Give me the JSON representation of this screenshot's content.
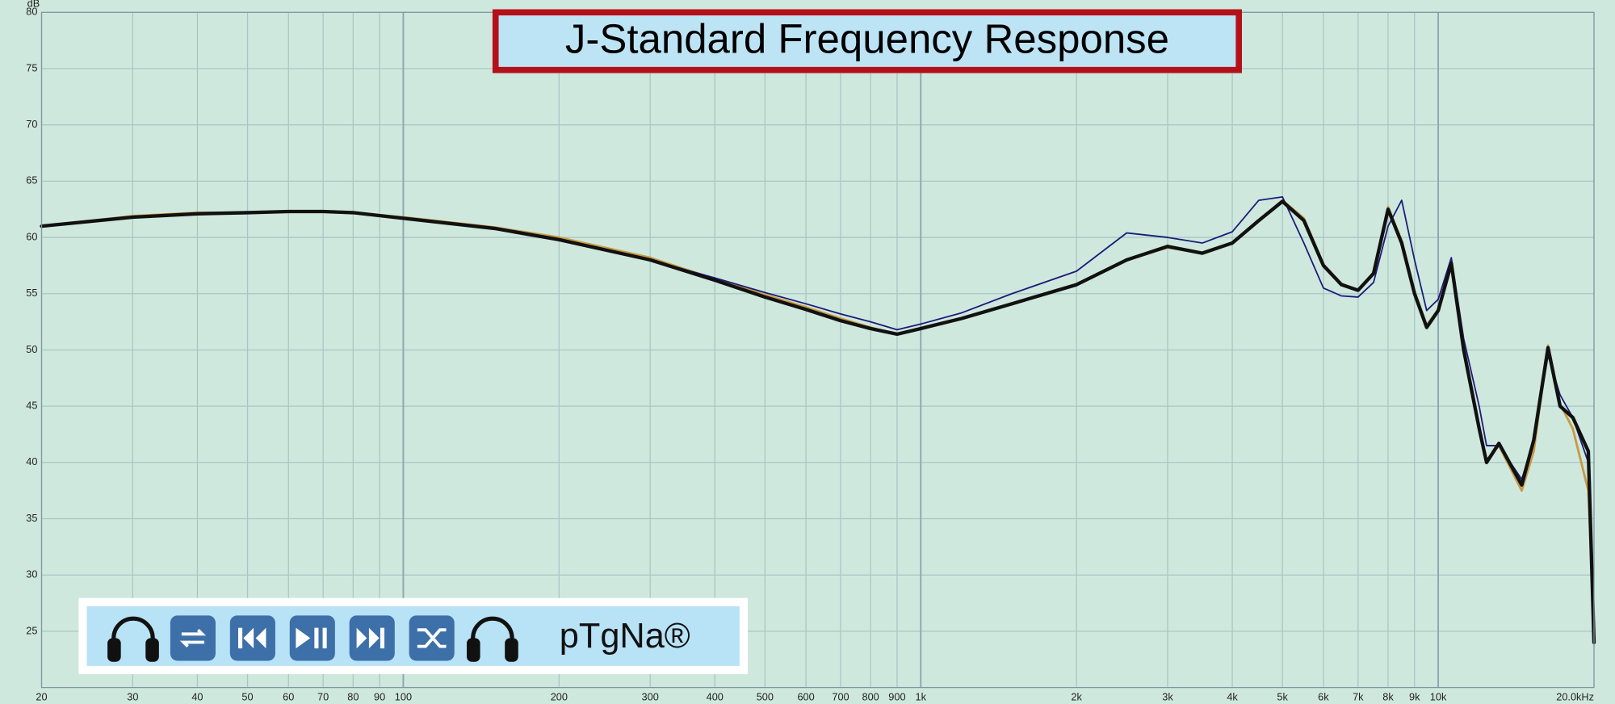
{
  "chart_data": {
    "type": "line",
    "title": "J-Standard Frequency Response",
    "ylabel": "dB",
    "annotation": "pTgNa®",
    "xscale": "log",
    "grid": true,
    "x": [
      20,
      30,
      40,
      50,
      60,
      70,
      80,
      100,
      150,
      200,
      300,
      400,
      500,
      600,
      700,
      800,
      900,
      1000,
      1200,
      1500,
      2000,
      2500,
      3000,
      3500,
      4000,
      4500,
      5000,
      5500,
      6000,
      6500,
      7000,
      7500,
      8000,
      8500,
      9000,
      9500,
      10000,
      10600,
      11200,
      12000,
      12400,
      13100,
      14500,
      15300,
      16300,
      17200,
      18200,
      19500,
      20000
    ],
    "series": [
      {
        "color": "#c89a40",
        "values": [
          61.0,
          61.9,
          62.2,
          62.2,
          62.3,
          62.3,
          62.2,
          61.8,
          60.9,
          60.0,
          58.2,
          56.3,
          54.9,
          53.8,
          52.8,
          52.0,
          51.4,
          51.9,
          52.8,
          54.1,
          55.8,
          58.0,
          59.1,
          58.6,
          59.5,
          61.5,
          63.3,
          61.7,
          57.6,
          55.9,
          55.3,
          56.9,
          62.7,
          59.7,
          55.2,
          52.2,
          53.6,
          57.9,
          50.2,
          43.2,
          40.2,
          41.5,
          37.5,
          41.0,
          50.4,
          45.2,
          43.0,
          37.5,
          25.0
        ]
      },
      {
        "color": "#1c1a78",
        "values": [
          61.0,
          61.8,
          62.1,
          62.2,
          62.3,
          62.3,
          62.2,
          61.7,
          60.8,
          59.8,
          58.0,
          56.4,
          55.1,
          54.1,
          53.2,
          52.5,
          51.8,
          52.3,
          53.3,
          55.0,
          57.0,
          60.4,
          60.0,
          59.5,
          60.5,
          63.3,
          63.6,
          59.5,
          55.5,
          54.8,
          54.7,
          56.0,
          61.0,
          63.3,
          58.0,
          53.5,
          54.5,
          58.2,
          51.0,
          45.0,
          41.5,
          41.5,
          38.5,
          42.0,
          49.5,
          46.0,
          44.0,
          40.0,
          25.0
        ]
      },
      {
        "color": "#111111",
        "values": [
          61.0,
          61.8,
          62.1,
          62.2,
          62.3,
          62.3,
          62.2,
          61.7,
          60.8,
          59.8,
          58.0,
          56.2,
          54.7,
          53.6,
          52.6,
          51.9,
          51.4,
          51.9,
          52.8,
          54.1,
          55.8,
          58.0,
          59.2,
          58.6,
          59.5,
          61.5,
          63.2,
          61.5,
          57.5,
          55.8,
          55.3,
          56.8,
          62.5,
          59.5,
          55.0,
          52.0,
          53.5,
          57.7,
          50.0,
          43.0,
          40.0,
          41.7,
          38.0,
          42.0,
          50.2,
          45.0,
          44.0,
          41.0,
          24.0
        ]
      }
    ],
    "xlim": [
      20,
      20000
    ],
    "xticks": [
      20,
      30,
      40,
      50,
      60,
      70,
      80,
      90,
      100,
      200,
      300,
      400,
      500,
      600,
      700,
      800,
      900,
      {
        "value": 1000,
        "label": "1k"
      },
      {
        "value": 2000,
        "label": "2k"
      },
      {
        "value": 3000,
        "label": "3k"
      },
      {
        "value": 4000,
        "label": "4k"
      },
      {
        "value": 5000,
        "label": "5k"
      },
      {
        "value": 6000,
        "label": "6k"
      },
      {
        "value": 7000,
        "label": "7k"
      },
      {
        "value": 8000,
        "label": "8k"
      },
      {
        "value": 9000,
        "label": "9k"
      },
      {
        "value": 10000,
        "label": "10k"
      },
      {
        "value": 20000,
        "label": "20.0kHz"
      }
    ],
    "ylim": [
      20,
      80
    ],
    "yticks": [
      25,
      30,
      35,
      40,
      45,
      50,
      55,
      60,
      65,
      70,
      75,
      80
    ]
  }
}
